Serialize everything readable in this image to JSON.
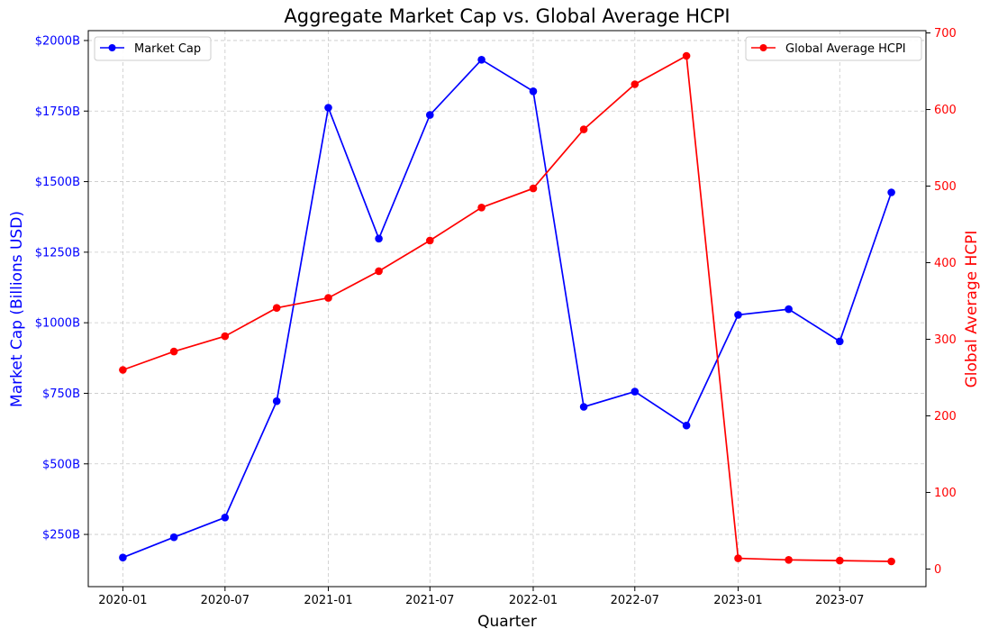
{
  "chart_data": {
    "type": "line",
    "title": "Aggregate Market Cap vs. Global Average HCPI",
    "xlabel": "Quarter",
    "x_tick_labels": [
      "2020-01",
      "2020-07",
      "2021-01",
      "2021-07",
      "2022-01",
      "2022-07",
      "2023-01",
      "2023-07"
    ],
    "x": [
      "2020-01-01",
      "2020-04-01",
      "2020-07-01",
      "2020-10-01",
      "2021-01-01",
      "2021-04-01",
      "2021-07-01",
      "2021-10-01",
      "2022-01-01",
      "2022-04-01",
      "2022-07-01",
      "2022-10-01",
      "2023-01-01",
      "2023-04-01",
      "2023-07-01",
      "2023-10-01"
    ],
    "left_axis": {
      "label": "Market Cap (Billions USD)",
      "color": "#0000ff",
      "ylim": [
        65,
        2035
      ],
      "ticks": [
        250,
        500,
        750,
        1000,
        1250,
        1500,
        1750,
        2000
      ],
      "tick_labels": [
        "$250B",
        "$500B",
        "$750B",
        "$1000B",
        "$1250B",
        "$1500B",
        "$1750B",
        "$2000B"
      ]
    },
    "right_axis": {
      "label": "Global Average HCPI",
      "color": "#ff0000",
      "ylim": [
        -23,
        703
      ],
      "ticks": [
        0,
        100,
        200,
        300,
        400,
        500,
        600,
        700
      ],
      "tick_labels": [
        "0",
        "100",
        "200",
        "300",
        "400",
        "500",
        "600",
        "700"
      ]
    },
    "grid": true,
    "series": [
      {
        "name": "Market Cap",
        "axis": "left",
        "color": "#0000ff",
        "values": [
          168,
          240,
          310,
          722,
          1762,
          1298,
          1736,
          1932,
          1820,
          702,
          756,
          636,
          1028,
          1048,
          934,
          1462
        ],
        "legend_position": "top-left"
      },
      {
        "name": "Global Average HCPI",
        "axis": "right",
        "color": "#ff0000",
        "values": [
          260,
          284,
          304,
          341,
          354,
          389,
          429,
          472,
          497,
          574,
          633,
          670,
          14,
          12,
          11,
          10
        ],
        "legend_position": "top-right"
      }
    ]
  }
}
